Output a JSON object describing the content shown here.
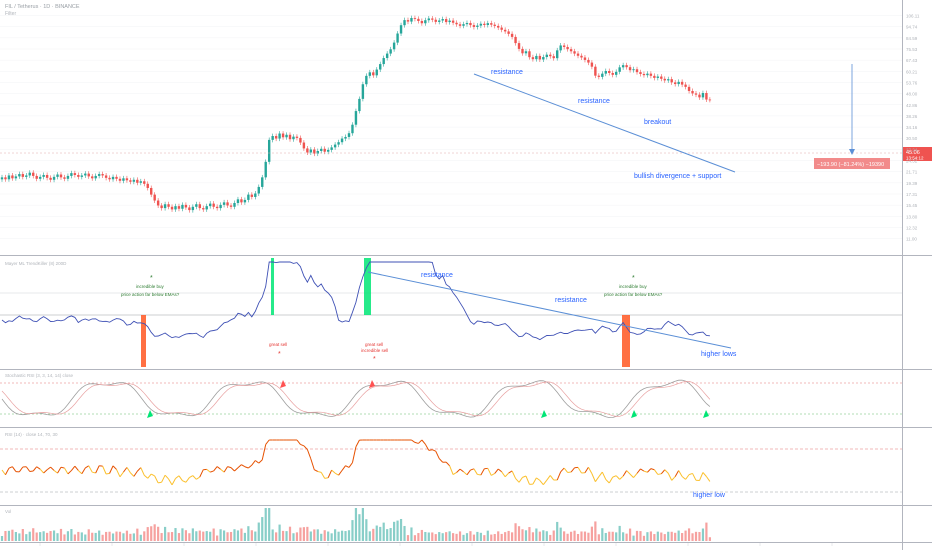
{
  "header": {
    "symbol_line": "FIL / Tetherus · 1D · BINANCE",
    "sub_line": "Filter"
  },
  "colors": {
    "up": "#26a69a",
    "down": "#ef5350",
    "annotation_blue": "#2962ff",
    "annotation_green": "#2e7d32",
    "annotation_red": "#e53935",
    "stoch_fill_green": "#00e676",
    "stoch_fill_red": "#ff5252",
    "rsi_hot": "#e65100",
    "rsi_cool": "#fbc02d",
    "target_box": "#f28b8b"
  },
  "price_panel": {
    "price_tag": "45.06",
    "price_tag_sub": "13:54:12",
    "target_label": "−193.90 (−81.24%) −19390",
    "annotations": {
      "resistance_1": "resistance",
      "resistance_2": "resistance",
      "breakout": "breakout",
      "divergence": "bullish divergence + support"
    }
  },
  "mayer_panel": {
    "title": "Mayer ML TrendKiller (8) 200D",
    "buy_1_marker": "*",
    "buy_1_line1": "incredible buy",
    "buy_1_line2": "price action far below EMAs?",
    "buy_2_marker": "*",
    "buy_2_line1": "incredible buy",
    "buy_2_line2": "price action far below EMAs?",
    "sell_1_line1": "great sell",
    "sell_1_marker": "*",
    "sell_2_line1": "great sell",
    "sell_2_line2": "incredible sell",
    "sell_2_marker": "*",
    "resistance_1": "resistance",
    "resistance_2": "resistance",
    "higher_lows": "higher lows"
  },
  "stoch_panel": {
    "title": "Stochastic RSI (3, 3, 14, 14) close"
  },
  "rsi_panel": {
    "title": "RSI (14) · close 14, 70, 30",
    "higher_low": "higher low"
  },
  "volume_panel": {
    "title": "Vol"
  },
  "chart_data": {
    "type": "candlestick",
    "note_style": "technical-analysis",
    "price_series": [
      20.5,
      20.1,
      20.9,
      20.3,
      20.7,
      21.2,
      20.6,
      20.9,
      21.5,
      20.8,
      20.2,
      20.6,
      21.0,
      20.4,
      20.0,
      20.6,
      21.1,
      20.5,
      20.2,
      20.8,
      21.4,
      21.0,
      20.6,
      20.9,
      21.3,
      20.7,
      20.3,
      20.8,
      21.2,
      20.9,
      20.4,
      20.1,
      20.6,
      20.2,
      19.8,
      20.3,
      19.9,
      19.6,
      20.0,
      19.4,
      19.7,
      19.2,
      18.4,
      17.2,
      16.2,
      15.4,
      15.0,
      15.6,
      15.2,
      14.8,
      15.3,
      14.9,
      15.5,
      15.1,
      14.7,
      15.2,
      15.6,
      15.0,
      14.8,
      15.3,
      15.7,
      15.2,
      15.0,
      15.5,
      15.9,
      15.4,
      15.2,
      15.8,
      16.4,
      15.9,
      16.3,
      17.2,
      16.8,
      17.4,
      18.6,
      20.5,
      24.0,
      30.0,
      31.2,
      30.4,
      32.0,
      30.8,
      31.6,
      30.2,
      31.0,
      30.6,
      29.2,
      27.5,
      26.4,
      27.2,
      26.1,
      26.8,
      27.4,
      26.6,
      27.1,
      27.8,
      28.6,
      29.3,
      30.4,
      30.9,
      32.1,
      35.0,
      40.2,
      45.5,
      52.8,
      57.5,
      59.6,
      57.8,
      61.3,
      64.8,
      68.9,
      72.1,
      75.3,
      80.6,
      88.4,
      96.2,
      101.3,
      99.8,
      103.5,
      102.6,
      100.4,
      98.1,
      101.2,
      103.0,
      101.7,
      99.5,
      100.9,
      102.4,
      99.3,
      100.8,
      98.6,
      97.1,
      95.6,
      97.2,
      98.4,
      96.3,
      94.5,
      95.8,
      97.6,
      96.4,
      98.2,
      96.7,
      95.5,
      93.9,
      91.8,
      90.3,
      88.1,
      85.4,
      80.2,
      75.6,
      72.3,
      73.8,
      69.5,
      68.1,
      70.4,
      67.9,
      69.6,
      71.3,
      70.2,
      68.8,
      74.5,
      78.3,
      77.1,
      75.4,
      73.8,
      72.1,
      70.5,
      69.3,
      67.6,
      65.8,
      63.1,
      57.6,
      56.9,
      58.8,
      60.4,
      59.2,
      58.1,
      59.9,
      62.7,
      64.1,
      62.8,
      60.9,
      61.5,
      59.7,
      58.6,
      57.9,
      58.8,
      57.5,
      56.3,
      57.1,
      55.8,
      54.9,
      55.6,
      53.8,
      52.9,
      54.1,
      52.6,
      51.4,
      49.3,
      48.1,
      47.5,
      46.2,
      48.3,
      45.2,
      45.06
    ],
    "target_price": 45.06,
    "target_change": "−81.24%"
  }
}
